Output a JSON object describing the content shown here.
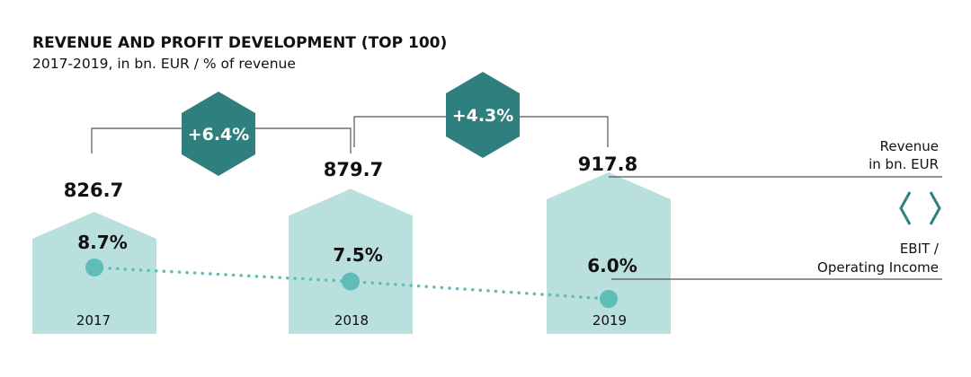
{
  "chart_data": {
    "type": "bar",
    "title": "REVENUE AND PROFIT DEVELOPMENT (TOP 100)",
    "subtitle": "2017-2019, in bn. EUR / % of revenue",
    "categories": [
      "2017",
      "2018",
      "2019"
    ],
    "series": [
      {
        "name": "Revenue in bn. EUR",
        "values": [
          826.7,
          879.7,
          917.8
        ],
        "labels": [
          "826.7",
          "879.7",
          "917.8"
        ]
      },
      {
        "name": "EBIT / Operating Income",
        "values": [
          8.7,
          7.5,
          6.0
        ],
        "labels": [
          "8.7%",
          "7.5%",
          "6.0%"
        ]
      }
    ],
    "growth": [
      {
        "from": "2017",
        "to": "2018",
        "label": "+6.4%"
      },
      {
        "from": "2018",
        "to": "2019",
        "label": "+4.3%"
      }
    ],
    "legend": {
      "revenue_line1": "Revenue",
      "revenue_line2": "in bn. EUR",
      "ebit_line1": "EBIT /",
      "ebit_line2": "Operating Income",
      "placement": "right"
    }
  },
  "colors": {
    "bar_fill": "#b9e0dc",
    "hexagon": "#2e7f7e",
    "marker": "#5fbcb6",
    "dotted_line": "#5fbcb6",
    "bracket": "#555555",
    "legend_chevron": "#2e7f7e"
  }
}
